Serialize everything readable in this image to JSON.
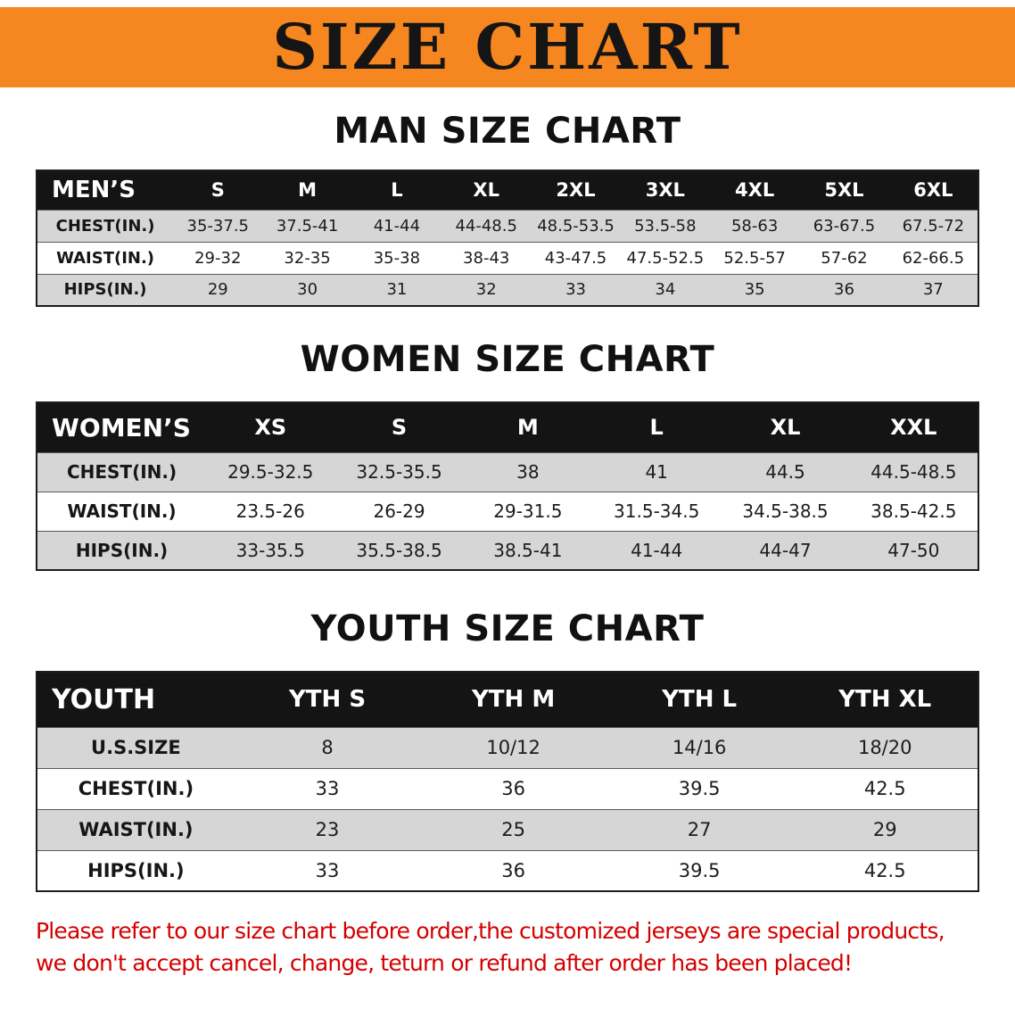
{
  "banner": {
    "title": "SIZE CHART",
    "bg_color": "#f6861f",
    "text_color": "#151515"
  },
  "colors": {
    "table_header_bg": "#141414",
    "table_header_text": "#ffffff",
    "row_stripe": "#d6d6d6",
    "footer_text": "#d40000"
  },
  "sections": [
    {
      "title": "MAN SIZE CHART",
      "table_name": "men-size-table",
      "table": {
        "header": [
          "MEN’S",
          "S",
          "M",
          "L",
          "XL",
          "2XL",
          "3XL",
          "4XL",
          "5XL",
          "6XL"
        ],
        "rows": [
          [
            "CHEST(IN.)",
            "35-37.5",
            "37.5-41",
            "41-44",
            "44-48.5",
            "48.5-53.5",
            "53.5-58",
            "58-63",
            "63-67.5",
            "67.5-72"
          ],
          [
            "WAIST(IN.)",
            "29-32",
            "32-35",
            "35-38",
            "38-43",
            "43-47.5",
            "47.5-52.5",
            "52.5-57",
            "57-62",
            "62-66.5"
          ],
          [
            "HIPS(IN.)",
            "29",
            "30",
            "31",
            "32",
            "33",
            "34",
            "35",
            "36",
            "37"
          ]
        ]
      }
    },
    {
      "title": "WOMEN SIZE CHART",
      "table_name": "women-size-table",
      "table": {
        "header": [
          "WOMEN’S",
          "XS",
          "S",
          "M",
          "L",
          "XL",
          "XXL"
        ],
        "rows": [
          [
            "CHEST(IN.)",
            "29.5-32.5",
            "32.5-35.5",
            "38",
            "41",
            "44.5",
            "44.5-48.5"
          ],
          [
            "WAIST(IN.)",
            "23.5-26",
            "26-29",
            "29-31.5",
            "31.5-34.5",
            "34.5-38.5",
            "38.5-42.5"
          ],
          [
            "HIPS(IN.)",
            "33-35.5",
            "35.5-38.5",
            "38.5-41",
            "41-44",
            "44-47",
            "47-50"
          ]
        ]
      }
    },
    {
      "title": "YOUTH SIZE CHART",
      "table_name": "youth-size-table",
      "table": {
        "header": [
          "YOUTH",
          "YTH S",
          "YTH M",
          "YTH L",
          "YTH XL"
        ],
        "rows": [
          [
            "U.S.SIZE",
            "8",
            "10/12",
            "14/16",
            "18/20"
          ],
          [
            "CHEST(IN.)",
            "33",
            "36",
            "39.5",
            "42.5"
          ],
          [
            "WAIST(IN.)",
            "23",
            "25",
            "27",
            "29"
          ],
          [
            "HIPS(IN.)",
            "33",
            "36",
            "39.5",
            "42.5"
          ]
        ]
      }
    }
  ],
  "footer": {
    "line1": "Please refer to our size chart before order,the customized jerseys are special products,",
    "line2": "we don't accept cancel, change, teturn or refund after order has been placed!"
  }
}
